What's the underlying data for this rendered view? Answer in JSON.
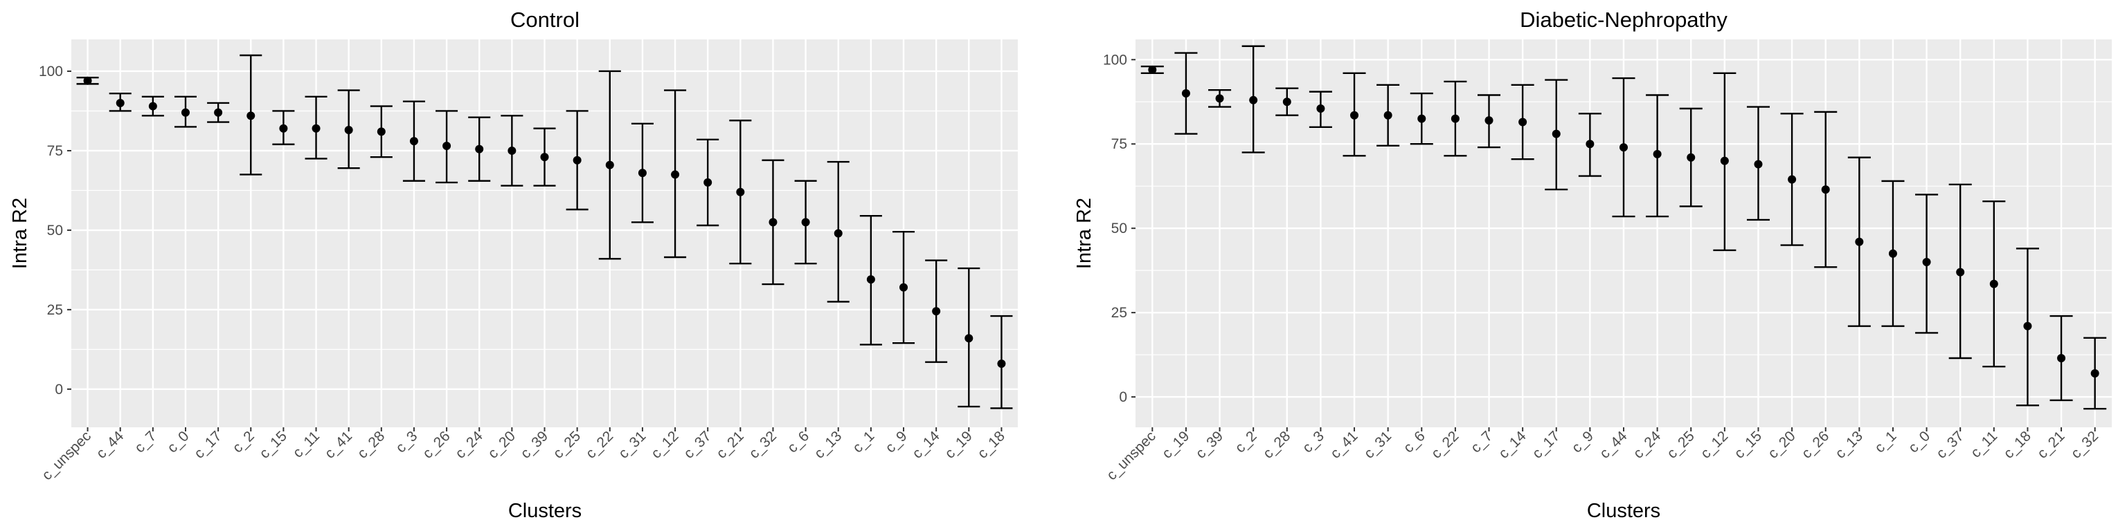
{
  "colors": {
    "panel_background": "#ebebeb",
    "grid_major": "#ffffff",
    "mark": "#000000",
    "tick_text": "#4d4d4d"
  },
  "chart_data": [
    {
      "type": "scatter",
      "subtype": "point-with-error-bars",
      "title": "Control",
      "xlabel": "Clusters",
      "ylabel": "Intra R2",
      "ylim": [
        -12,
        110
      ],
      "yticks": [
        0,
        25,
        50,
        75,
        100
      ],
      "grid": true,
      "categories": [
        "c_unspec",
        "c_44",
        "c_7",
        "c_0",
        "c_17",
        "c_2",
        "c_15",
        "c_11",
        "c_41",
        "c_28",
        "c_3",
        "c_26",
        "c_24",
        "c_20",
        "c_39",
        "c_25",
        "c_22",
        "c_31",
        "c_12",
        "c_37",
        "c_21",
        "c_32",
        "c_6",
        "c_13",
        "c_1",
        "c_9",
        "c_14",
        "c_19",
        "c_18"
      ],
      "values": [
        97,
        90,
        89,
        87,
        87,
        86,
        82,
        82,
        81.5,
        81,
        78,
        76.5,
        75.5,
        75,
        73,
        72,
        70.5,
        68,
        67.5,
        65,
        62,
        52.5,
        52.5,
        49,
        34.5,
        32,
        24.5,
        16,
        8
      ],
      "lower": [
        96,
        87.5,
        86,
        82.5,
        84,
        67.5,
        77,
        72.5,
        69.5,
        73,
        65.5,
        65,
        65.5,
        64,
        64,
        56.5,
        41,
        52.5,
        41.5,
        51.5,
        39.5,
        33,
        39.5,
        27.5,
        14,
        14.5,
        8.5,
        -5.5,
        -6
      ],
      "upper": [
        98,
        93,
        92,
        92,
        90,
        105,
        87.5,
        92,
        94,
        89,
        90.5,
        87.5,
        85.5,
        86,
        82,
        87.5,
        100,
        83.5,
        94,
        78.5,
        84.5,
        72,
        65.5,
        71.5,
        54.5,
        49.5,
        40.5,
        38,
        23
      ]
    },
    {
      "type": "scatter",
      "subtype": "point-with-error-bars",
      "title": "Diabetic-Nephropathy",
      "xlabel": "Clusters",
      "ylabel": "Intra R2",
      "ylim": [
        -9,
        106
      ],
      "yticks": [
        0,
        25,
        50,
        75,
        100
      ],
      "grid": true,
      "categories": [
        "c_unspec",
        "c_19",
        "c_39",
        "c_2",
        "c_28",
        "c_3",
        "c_41",
        "c_31",
        "c_6",
        "c_22",
        "c_7",
        "c_14",
        "c_17",
        "c_9",
        "c_44",
        "c_24",
        "c_25",
        "c_12",
        "c_15",
        "c_20",
        "c_26",
        "c_13",
        "c_1",
        "c_0",
        "c_37",
        "c_11",
        "c_18",
        "c_21",
        "c_32"
      ],
      "values": [
        97,
        90,
        88.5,
        88,
        87.5,
        85.5,
        83.5,
        83.5,
        82.5,
        82.5,
        82,
        81.5,
        78,
        75,
        74,
        72,
        71,
        70,
        69,
        64.5,
        61.5,
        46,
        42.5,
        40,
        37,
        33.5,
        21,
        11.5,
        7
      ],
      "lower": [
        96,
        78,
        86,
        72.5,
        83.5,
        80,
        71.5,
        74.5,
        75,
        71.5,
        74,
        70.5,
        61.5,
        65.5,
        53.5,
        53.5,
        56.5,
        43.5,
        52.5,
        45,
        38.5,
        21,
        21,
        19,
        11.5,
        9,
        -2.5,
        -1,
        -3.5
      ],
      "upper": [
        98,
        102,
        91,
        104,
        91.5,
        90.5,
        96,
        92.5,
        90,
        93.5,
        89.5,
        92.5,
        94,
        84,
        94.5,
        89.5,
        85.5,
        96,
        86,
        84,
        84.5,
        71,
        64,
        60,
        63,
        58,
        44,
        24,
        17.5
      ]
    }
  ]
}
